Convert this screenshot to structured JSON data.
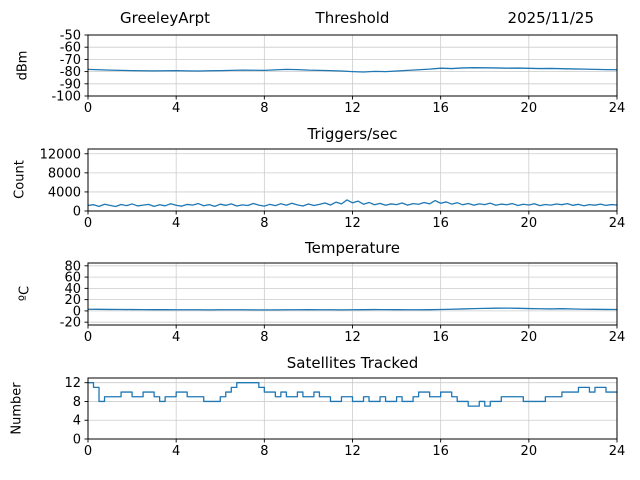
{
  "figure": {
    "background": "#ffffff",
    "grid_color": "#cccccc",
    "frame_color": "#000000"
  },
  "chart_data": [
    {
      "id": "threshold",
      "type": "line",
      "title_left": "GreeleyArpt",
      "title": "Threshold",
      "title_right": "2025/11/25",
      "ylabel": "dBm",
      "xlim": [
        0,
        24
      ],
      "ylim": [
        -100,
        -50
      ],
      "xticks": [
        0,
        4,
        8,
        12,
        16,
        20,
        24
      ],
      "yticks": [
        -50,
        -60,
        -70,
        -80,
        -90,
        -100
      ],
      "x_start": 0,
      "x_step": 0.5,
      "y": [
        -78.2,
        -78.5,
        -78.8,
        -79.0,
        -79.2,
        -79.3,
        -79.4,
        -79.3,
        -79.2,
        -79.4,
        -79.5,
        -79.3,
        -79.2,
        -79.0,
        -78.8,
        -78.9,
        -79.0,
        -78.6,
        -78.2,
        -78.4,
        -78.8,
        -79.0,
        -79.2,
        -79.5,
        -80.0,
        -80.3,
        -79.8,
        -80.0,
        -79.5,
        -79.0,
        -78.5,
        -78.0,
        -77.2,
        -77.5,
        -77.0,
        -76.8,
        -76.9,
        -77.0,
        -77.2,
        -77.1,
        -77.3,
        -77.5,
        -77.4,
        -77.6,
        -77.8,
        -78.0,
        -78.2,
        -78.4,
        -78.5
      ],
      "line_color": "#1f77b4",
      "grid": true
    },
    {
      "id": "triggers",
      "type": "line",
      "title": "Triggers/sec",
      "ylabel": "Count",
      "xlim": [
        0,
        24
      ],
      "ylim": [
        0,
        13000
      ],
      "xticks": [
        0,
        4,
        8,
        12,
        16,
        20,
        24
      ],
      "yticks": [
        0,
        4000,
        8000,
        12000
      ],
      "x_start": 0,
      "x_step": 0.25,
      "y": [
        1150,
        1320,
        980,
        1410,
        1180,
        950,
        1360,
        1120,
        1480,
        1060,
        1240,
        1390,
        960,
        1310,
        1090,
        1520,
        1200,
        1010,
        1380,
        1230,
        1560,
        1110,
        1340,
        970,
        1430,
        1190,
        1490,
        1050,
        1290,
        1160,
        1580,
        1240,
        1020,
        1400,
        1120,
        1530,
        1210,
        1620,
        1280,
        1040,
        1470,
        1150,
        1390,
        1680,
        1260,
        1850,
        1490,
        2320,
        1710,
        2080,
        1420,
        1790,
        1310,
        1590,
        1210,
        1480,
        1330,
        1670,
        1240,
        1540,
        1410,
        1780,
        1500,
        2180,
        1620,
        1900,
        1450,
        1740,
        1300,
        1580,
        1220,
        1490,
        1340,
        1640,
        1210,
        1450,
        1310,
        1560,
        1160,
        1420,
        1260,
        1510,
        1120,
        1370,
        1230,
        1460,
        1320,
        1550,
        1190,
        1400,
        1110,
        1330,
        1220,
        1440,
        1170,
        1350,
        1260
      ],
      "line_color": "#1f77b4",
      "grid": true
    },
    {
      "id": "temperature",
      "type": "line",
      "title": "Temperature",
      "ylabel": "ºC",
      "xlim": [
        0,
        24
      ],
      "ylim": [
        -25,
        85
      ],
      "xticks": [
        0,
        4,
        8,
        12,
        16,
        20,
        24
      ],
      "yticks": [
        -20,
        0,
        20,
        40,
        60,
        80
      ],
      "x_start": 0,
      "x_step": 0.5,
      "y": [
        3.0,
        2.8,
        2.6,
        2.5,
        2.4,
        2.3,
        2.2,
        2.2,
        2.1,
        2.0,
        2.0,
        1.9,
        2.0,
        2.1,
        2.0,
        1.9,
        1.8,
        1.9,
        2.0,
        2.1,
        2.2,
        2.1,
        2.0,
        1.9,
        2.0,
        2.2,
        2.4,
        2.3,
        2.2,
        2.1,
        2.0,
        2.2,
        2.5,
        3.0,
        3.5,
        4.0,
        4.5,
        4.8,
        5.0,
        4.6,
        4.2,
        3.8,
        3.5,
        3.9,
        3.4,
        3.0,
        2.8,
        2.6,
        2.5
      ],
      "line_color": "#1f77b4",
      "grid": true
    },
    {
      "id": "satellites",
      "type": "step",
      "title": "Satellites Tracked",
      "ylabel": "Number",
      "xlim": [
        0,
        24
      ],
      "ylim": [
        0,
        13
      ],
      "xticks": [
        0,
        4,
        8,
        12,
        16,
        20,
        24
      ],
      "yticks": [
        0,
        4,
        8,
        12
      ],
      "x": [
        0,
        0.25,
        0.5,
        0.75,
        1.25,
        1.5,
        2,
        2.5,
        3,
        3.25,
        3.5,
        4,
        4.5,
        5,
        5.25,
        5.5,
        6,
        6.25,
        6.5,
        6.75,
        7.5,
        7.75,
        8,
        8.5,
        8.75,
        9,
        9.5,
        9.75,
        10.25,
        10.5,
        11,
        11.5,
        12,
        12.5,
        12.75,
        13.25,
        13.5,
        14,
        14.25,
        14.75,
        15,
        15.5,
        16,
        16.5,
        16.75,
        17.25,
        17.5,
        17.75,
        18,
        18.25,
        18.75,
        19.5,
        19.75,
        20.5,
        20.75,
        21.25,
        21.5,
        22,
        22.25,
        22.75,
        23,
        23.5,
        24
      ],
      "y": [
        12,
        11,
        8,
        9,
        9,
        10,
        9,
        10,
        9,
        8,
        9,
        10,
        9,
        9,
        8,
        8,
        9,
        10,
        11,
        12,
        12,
        11,
        10,
        9,
        10,
        9,
        10,
        9,
        10,
        9,
        8,
        9,
        8,
        9,
        8,
        9,
        8,
        9,
        8,
        9,
        10,
        9,
        10,
        9,
        8,
        7,
        7,
        8,
        7,
        8,
        9,
        9,
        8,
        8,
        9,
        9,
        10,
        10,
        11,
        10,
        11,
        10,
        10
      ],
      "line_color": "#1f77b4",
      "grid": true
    }
  ]
}
